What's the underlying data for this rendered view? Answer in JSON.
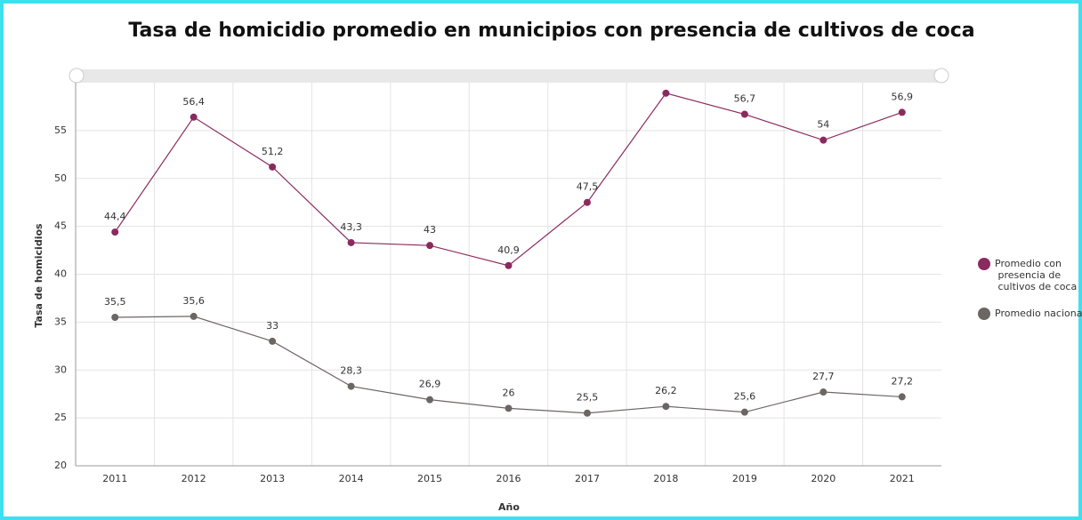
{
  "chart_data": {
    "type": "line",
    "title": "Tasa de homicidio promedio en municipios con presencia de cultivos de coca",
    "x_label": "Año",
    "y_label": "Tasa de homicidios",
    "categories": [
      "2011",
      "2012",
      "2013",
      "2014",
      "2015",
      "2016",
      "2017",
      "2018",
      "2019",
      "2020",
      "2021"
    ],
    "series": [
      {
        "name": "Promedio con presencia de cultivos de coca",
        "color": "#8b2a5e",
        "values": [
          44.4,
          56.4,
          51.2,
          43.3,
          43,
          40.9,
          47.5,
          58.9,
          56.7,
          54,
          56.9
        ],
        "value_labels": [
          "44,4",
          "56,4",
          "51,2",
          "43,3",
          "43",
          "40,9",
          "47,5",
          null,
          "56,7",
          "54",
          "56,9"
        ]
      },
      {
        "name": "Promedio nacional",
        "color": "#6b6664",
        "values": [
          35.5,
          35.6,
          33,
          28.3,
          26.9,
          26,
          25.5,
          26.2,
          25.6,
          27.7,
          27.2
        ],
        "value_labels": [
          "35,5",
          "35,6",
          "33",
          "28,3",
          "26,9",
          "26",
          "25,5",
          "26,2",
          "25,6",
          "27,7",
          "27,2"
        ]
      }
    ],
    "ylim": [
      20,
      60
    ],
    "yticks": [
      20,
      25,
      30,
      35,
      40,
      45,
      50,
      55
    ],
    "grid": true,
    "legend": "right"
  }
}
